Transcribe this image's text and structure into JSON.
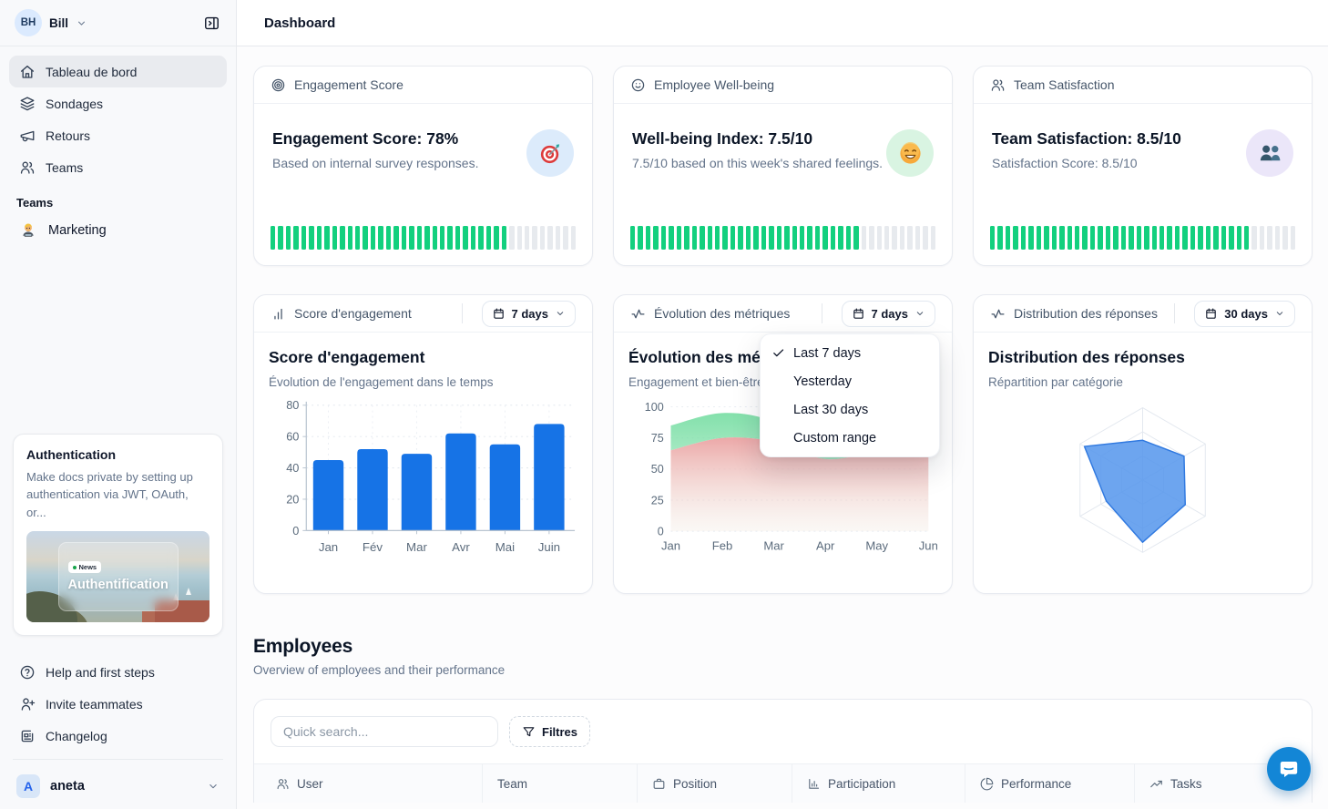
{
  "sidebar": {
    "user": {
      "initials": "BH",
      "name": "Bill"
    },
    "nav": [
      {
        "label": "Tableau de bord",
        "icon": "house",
        "active": true
      },
      {
        "label": "Sondages",
        "icon": "layers",
        "active": false
      },
      {
        "label": "Retours",
        "icon": "megaphone",
        "active": false
      },
      {
        "label": "Teams",
        "icon": "users",
        "active": false
      }
    ],
    "section_label": "Teams",
    "team_items": [
      {
        "label": "Marketing",
        "icon": "person-technologist-emoji"
      }
    ],
    "promo": {
      "title": "Authentication",
      "body": "Make docs private by setting up authentication via JWT, OAuth, or...",
      "badge": "News",
      "image_title": "Authentification"
    },
    "footer_nav": [
      {
        "label": "Help and first steps",
        "icon": "help-circle"
      },
      {
        "label": "Invite teammates",
        "icon": "user-plus"
      },
      {
        "label": "Changelog",
        "icon": "newspaper"
      }
    ],
    "workspace": {
      "initial": "A",
      "name": "aneta"
    }
  },
  "header": {
    "title": "Dashboard"
  },
  "stats": [
    {
      "header": "Engagement Score",
      "header_icon": "target",
      "title": "Engagement Score: 78%",
      "subtitle": "Based on internal survey responses.",
      "emoji": "target-emoji",
      "badge_bg": "#dcebfb",
      "progress_pct": 78
    },
    {
      "header": "Employee Well-being",
      "header_icon": "smile",
      "title": "Well-being Index: 7.5/10",
      "subtitle": "7.5/10 based on this week's shared feelings.",
      "emoji": "smiling-face-emoji",
      "badge_bg": "#d9f4e2",
      "progress_pct": 75
    },
    {
      "header": "Team Satisfaction",
      "header_icon": "users",
      "title": "Team Satisfaction: 8.5/10",
      "subtitle": "Satisfaction Score: 8.5/10",
      "emoji": "busts-emoji",
      "badge_bg": "#ebe6f9",
      "progress_pct": 85
    }
  ],
  "charts": [
    {
      "header": "Score d'engagement",
      "header_icon": "bar-chart",
      "range": "7 days",
      "title": "Score d'engagement",
      "subtitle": "Évolution de l'engagement dans le temps"
    },
    {
      "header": "Évolution des métriques",
      "header_icon": "activity",
      "range": "7 days",
      "title": "Évolution des métriques",
      "subtitle": "Engagement et bien-être"
    },
    {
      "header": "Distribution des réponses",
      "header_icon": "activity",
      "range": "30 days",
      "title": "Distribution des réponses",
      "subtitle": "Répartition par catégorie"
    }
  ],
  "dropdown": {
    "items": [
      {
        "label": "Last 7 days",
        "checked": true
      },
      {
        "label": "Yesterday",
        "checked": false
      },
      {
        "label": "Last 30 days",
        "checked": false
      },
      {
        "label": "Custom range",
        "checked": false
      }
    ]
  },
  "employees": {
    "title": "Employees",
    "subtitle": "Overview of employees and their performance",
    "search_placeholder": "Quick search...",
    "filter_label": "Filtres",
    "columns": [
      {
        "label": "User",
        "icon": "users"
      },
      {
        "label": "Team",
        "icon": ""
      },
      {
        "label": "Position",
        "icon": "briefcase"
      },
      {
        "label": "Participation",
        "icon": "bar-chart-axis"
      },
      {
        "label": "Performance",
        "icon": "pie-chart"
      },
      {
        "label": "Tasks",
        "icon": "trending-up"
      }
    ]
  },
  "chart_data": [
    {
      "type": "bar",
      "title": "Score d'engagement",
      "categories": [
        "Jan",
        "Fév",
        "Mar",
        "Avr",
        "Mai",
        "Juin"
      ],
      "values": [
        45,
        52,
        49,
        62,
        55,
        68
      ],
      "ylim": [
        0,
        80
      ],
      "yticks": [
        0,
        20,
        40,
        60,
        80
      ],
      "bar_color": "#1673e6",
      "grid": "dotted"
    },
    {
      "type": "area",
      "title": "Évolution des métriques",
      "x": [
        "Jan",
        "Feb",
        "Mar",
        "Apr",
        "May",
        "Jun"
      ],
      "series": [
        {
          "name": "Engagement",
          "values": [
            85,
            95,
            88,
            62,
            70,
            78
          ],
          "color": "#7ddfa7"
        },
        {
          "name": "Bien-être",
          "values": [
            65,
            75,
            72,
            58,
            64,
            68
          ],
          "color": "#eba3a3"
        }
      ],
      "ylim": [
        0,
        100
      ],
      "yticks": [
        0,
        25,
        50,
        75,
        100
      ],
      "grid": "dotted",
      "legend": "none"
    },
    {
      "type": "radar",
      "title": "Distribution des réponses",
      "axes_count": 6,
      "values": [
        55,
        66,
        68,
        86,
        58,
        93
      ],
      "max": 100,
      "levels": 3,
      "fill": "#5495ec",
      "fill_opacity": 0.85,
      "stroke": "#3079e0"
    }
  ],
  "colors": {
    "accent_blue": "#1673e6",
    "progress_green": "#13d07e",
    "radar_fill": "#5495ec",
    "area_green": "#7ddfa7",
    "area_pink": "#eba3a3",
    "chat_launcher": "#1386d6"
  }
}
